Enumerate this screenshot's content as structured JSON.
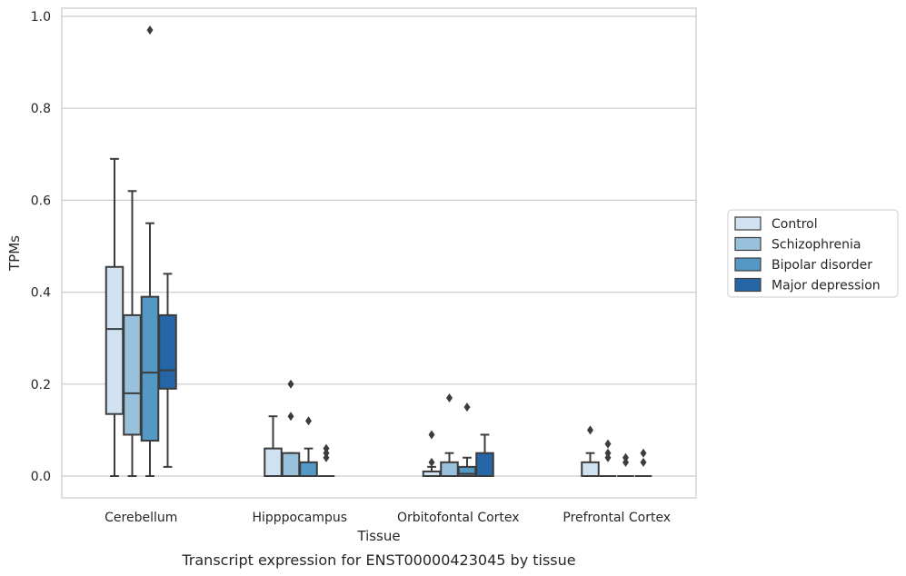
{
  "chart_data": {
    "type": "box",
    "title": "",
    "caption": "Transcript expression for ENST00000423045 by tissue",
    "xlabel": "Tissue",
    "ylabel": "TPMs",
    "ylim": [
      -0.046,
      1.02
    ],
    "yticks": [
      "0.0",
      "0.2",
      "0.4",
      "0.6",
      "0.8",
      "1.0"
    ],
    "ytick_values": [
      0.0,
      0.2,
      0.4,
      0.6,
      0.8,
      1.0
    ],
    "grid": "horizontal",
    "legend_position": "right",
    "categories": [
      "Cerebellum",
      "Hipppocampus",
      "Orbitofontal Cortex",
      "Prefrontal Cortex"
    ],
    "series": [
      {
        "name": "Control",
        "color": "#d0e1f1",
        "boxes": [
          {
            "whislo": 0.0,
            "q1": 0.135,
            "med": 0.32,
            "q3": 0.455,
            "whishi": 0.69,
            "fliers": []
          },
          {
            "whislo": 0.0,
            "q1": 0.0,
            "med": 0.0,
            "q3": 0.06,
            "whishi": 0.13,
            "fliers": []
          },
          {
            "whislo": 0.0,
            "q1": 0.0,
            "med": 0.0,
            "q3": 0.01,
            "whishi": 0.02,
            "fliers": [
              0.03,
              0.09
            ]
          },
          {
            "whislo": 0.0,
            "q1": 0.0,
            "med": 0.0,
            "q3": 0.03,
            "whishi": 0.05,
            "fliers": [
              0.1
            ]
          }
        ]
      },
      {
        "name": "Schizophrenia",
        "color": "#9ac1dc",
        "boxes": [
          {
            "whislo": 0.0,
            "q1": 0.09,
            "med": 0.18,
            "q3": 0.35,
            "whishi": 0.62,
            "fliers": []
          },
          {
            "whislo": 0.0,
            "q1": 0.0,
            "med": 0.0,
            "q3": 0.05,
            "whishi": 0.05,
            "fliers": [
              0.13,
              0.2
            ]
          },
          {
            "whislo": 0.0,
            "q1": 0.0,
            "med": 0.0,
            "q3": 0.03,
            "whishi": 0.05,
            "fliers": [
              0.17
            ]
          },
          {
            "whislo": 0.0,
            "q1": 0.0,
            "med": 0.0,
            "q3": 0.0,
            "whishi": 0.0,
            "fliers": [
              0.04,
              0.05,
              0.07
            ]
          }
        ]
      },
      {
        "name": "Bipolar disorder",
        "color": "#5498c6",
        "boxes": [
          {
            "whislo": 0.0,
            "q1": 0.077,
            "med": 0.225,
            "q3": 0.39,
            "whishi": 0.55,
            "fliers": [
              0.97
            ]
          },
          {
            "whislo": 0.0,
            "q1": 0.0,
            "med": 0.0,
            "q3": 0.03,
            "whishi": 0.06,
            "fliers": [
              0.12
            ]
          },
          {
            "whislo": 0.0,
            "q1": 0.0,
            "med": 0.005,
            "q3": 0.02,
            "whishi": 0.04,
            "fliers": [
              0.15
            ]
          },
          {
            "whislo": 0.0,
            "q1": 0.0,
            "med": 0.0,
            "q3": 0.0,
            "whishi": 0.0,
            "fliers": [
              0.03,
              0.04
            ]
          }
        ]
      },
      {
        "name": "Major depression",
        "color": "#2566a6",
        "boxes": [
          {
            "whislo": 0.02,
            "q1": 0.19,
            "med": 0.23,
            "q3": 0.35,
            "whishi": 0.44,
            "fliers": []
          },
          {
            "whislo": 0.0,
            "q1": 0.0,
            "med": 0.0,
            "q3": 0.0,
            "whishi": 0.0,
            "fliers": [
              0.04,
              0.05,
              0.06
            ]
          },
          {
            "whislo": 0.0,
            "q1": 0.0,
            "med": 0.0,
            "q3": 0.05,
            "whishi": 0.09,
            "fliers": []
          },
          {
            "whislo": 0.0,
            "q1": 0.0,
            "med": 0.0,
            "q3": 0.0,
            "whishi": 0.0,
            "fliers": [
              0.03,
              0.05
            ]
          }
        ]
      }
    ]
  }
}
